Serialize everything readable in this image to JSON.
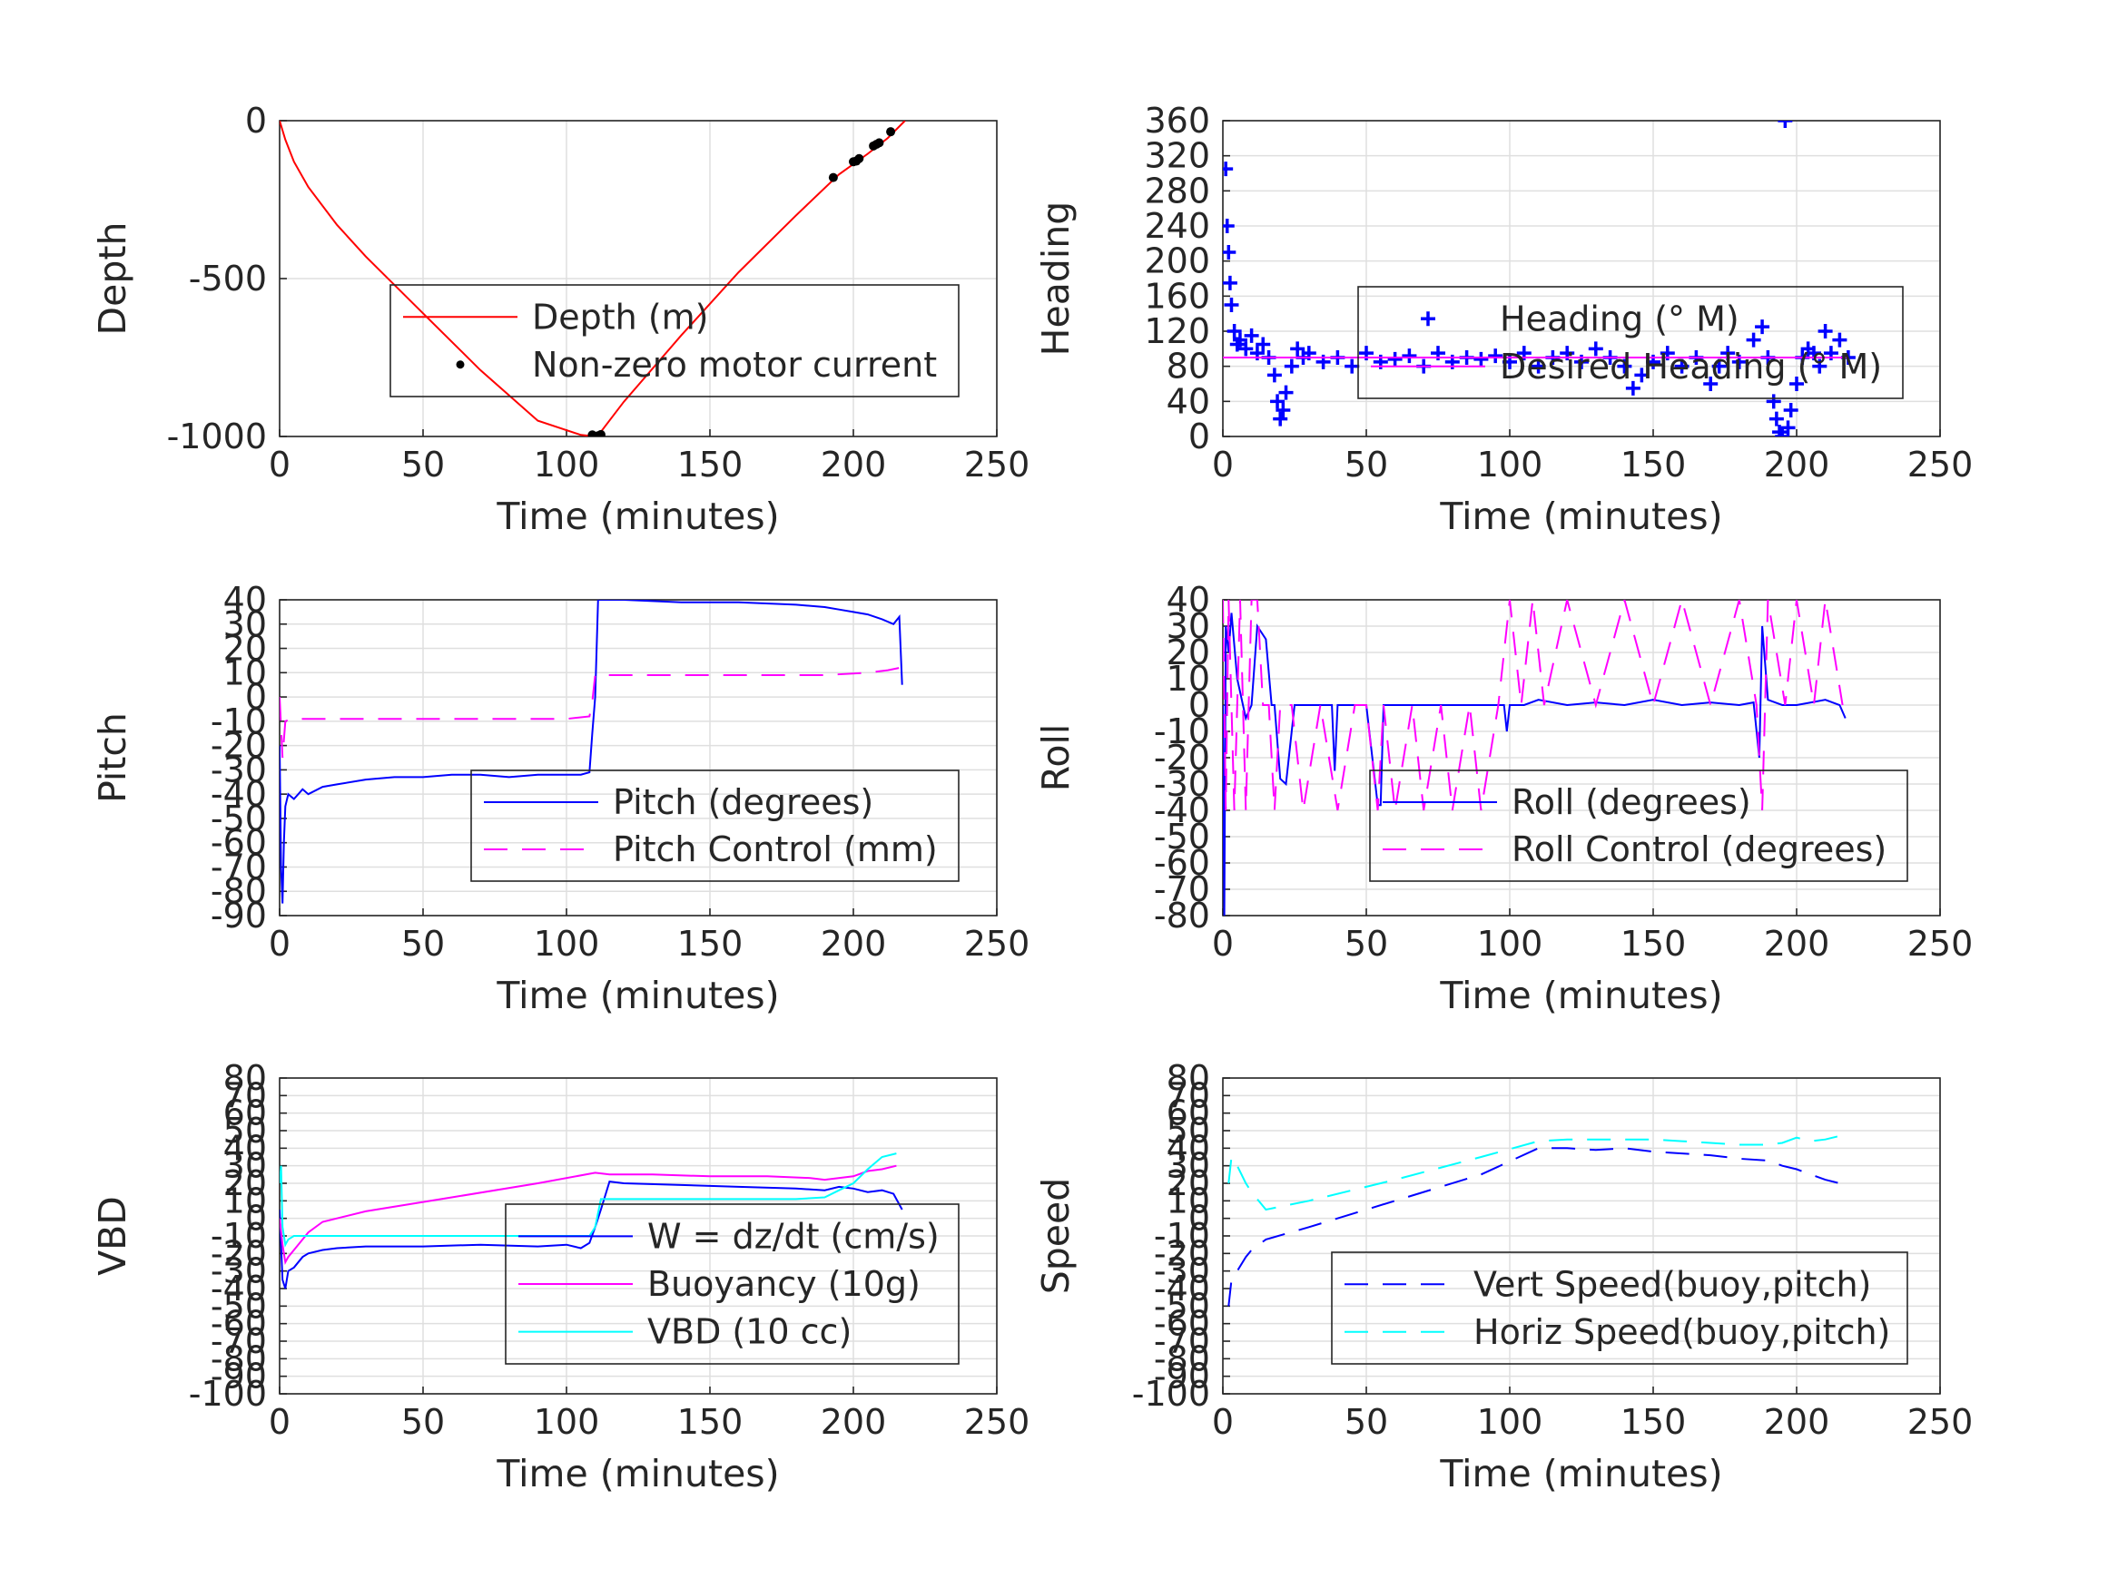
{
  "chart_data": [
    {
      "type": "line",
      "xlabel": "Time (minutes)",
      "ylabel": "Depth",
      "xlim": [
        0,
        250
      ],
      "ylim": [
        -1000,
        0
      ],
      "xticks": [
        0,
        50,
        100,
        150,
        200,
        250
      ],
      "yticks": [
        0,
        -500,
        -1000
      ],
      "grid": true,
      "legend_position": "center-right",
      "series": [
        {
          "name": "Depth (m)",
          "color": "#ff0000",
          "style": "solid",
          "x": [
            0,
            2,
            5,
            10,
            20,
            30,
            50,
            70,
            90,
            105,
            110,
            112,
            120,
            140,
            160,
            180,
            195,
            205,
            212,
            218
          ],
          "y": [
            0,
            -60,
            -130,
            -210,
            -330,
            -430,
            -610,
            -790,
            -950,
            -995,
            -1000,
            -985,
            -890,
            -680,
            -480,
            -300,
            -170,
            -105,
            -55,
            0
          ]
        },
        {
          "name": "Non-zero motor current",
          "color": "#000000",
          "style": "dot",
          "x": [
            109,
            110,
            111,
            112,
            193,
            200,
            201,
            202,
            207,
            208,
            209,
            213
          ],
          "y": [
            -995,
            -1000,
            -998,
            -994,
            -180,
            -130,
            -128,
            -120,
            -80,
            -75,
            -70,
            -35
          ]
        }
      ]
    },
    {
      "type": "scatter",
      "xlabel": "Time (minutes)",
      "ylabel": "Heading",
      "xlim": [
        0,
        250
      ],
      "ylim": [
        0,
        360
      ],
      "xticks": [
        0,
        50,
        100,
        150,
        200,
        250
      ],
      "yticks": [
        0,
        40,
        80,
        120,
        160,
        200,
        240,
        280,
        320,
        360
      ],
      "grid": true,
      "legend_position": "center-right",
      "series": [
        {
          "name": "Heading (° M)",
          "color": "#0000ff",
          "marker": "+",
          "x": [
            1,
            1.5,
            2,
            2.5,
            3,
            4,
            5,
            6,
            8,
            10,
            12,
            14,
            16,
            18,
            19,
            20,
            21,
            22,
            24,
            26,
            28,
            30,
            35,
            40,
            45,
            50,
            55,
            60,
            65,
            70,
            75,
            80,
            85,
            90,
            95,
            100,
            105,
            110,
            115,
            120,
            125,
            130,
            135,
            140,
            143,
            146,
            150,
            155,
            160,
            165,
            170,
            173,
            176,
            180,
            185,
            188,
            190,
            192,
            193,
            194,
            195,
            196,
            197,
            198,
            200,
            202,
            204,
            206,
            208,
            210,
            212,
            215,
            218
          ],
          "y": [
            305,
            240,
            210,
            175,
            150,
            120,
            105,
            110,
            100,
            115,
            95,
            105,
            90,
            70,
            40,
            20,
            30,
            50,
            80,
            100,
            90,
            95,
            85,
            90,
            80,
            95,
            85,
            88,
            92,
            80,
            95,
            85,
            90,
            88,
            92,
            85,
            95,
            80,
            90,
            95,
            85,
            100,
            90,
            80,
            55,
            70,
            85,
            95,
            80,
            90,
            60,
            80,
            95,
            85,
            110,
            125,
            90,
            40,
            20,
            5,
            0,
            360,
            10,
            30,
            60,
            90,
            100,
            95,
            80,
            120,
            95,
            110,
            90
          ]
        },
        {
          "name": "Desired Heading (° M)",
          "color": "#ff00ff",
          "style": "solid",
          "x": [
            0,
            218
          ],
          "y": [
            90,
            90
          ]
        }
      ]
    },
    {
      "type": "line",
      "xlabel": "Time (minutes)",
      "ylabel": "Pitch",
      "xlim": [
        0,
        250
      ],
      "ylim": [
        -90,
        40
      ],
      "xticks": [
        0,
        50,
        100,
        150,
        200,
        250
      ],
      "yticks": [
        40,
        30,
        20,
        10,
        0,
        -10,
        -20,
        -30,
        -40,
        -50,
        -60,
        -70,
        -80,
        -90
      ],
      "grid": true,
      "legend_position": "center-right",
      "series": [
        {
          "name": "Pitch (degrees)",
          "color": "#0000ff",
          "style": "solid",
          "x": [
            0,
            0.5,
            1,
            1.5,
            2,
            3,
            5,
            8,
            10,
            15,
            20,
            30,
            40,
            50,
            60,
            70,
            80,
            90,
            100,
            105,
            108,
            109,
            110,
            111,
            112,
            120,
            140,
            160,
            180,
            190,
            195,
            200,
            205,
            210,
            214,
            216,
            217
          ],
          "y": [
            -20,
            -70,
            -85,
            -60,
            -45,
            -40,
            -42,
            -38,
            -40,
            -37,
            -36,
            -34,
            -33,
            -33,
            -32,
            -32,
            -33,
            -32,
            -32,
            -32,
            -31,
            -15,
            0,
            40,
            40,
            40,
            39,
            39,
            38,
            37,
            36,
            35,
            34,
            32,
            30,
            33,
            5
          ]
        },
        {
          "name": "Pitch Control (mm)",
          "color": "#ff00ff",
          "style": "dashed",
          "x": [
            0,
            1,
            2,
            4,
            10,
            30,
            60,
            80,
            100,
            108,
            109,
            110,
            112,
            130,
            160,
            190,
            205,
            212,
            216
          ],
          "y": [
            0,
            -25,
            -10,
            -9,
            -9,
            -9,
            -9,
            -9,
            -9,
            -8,
            -2,
            9,
            9,
            9,
            9,
            9,
            10,
            11,
            12
          ]
        }
      ]
    },
    {
      "type": "line",
      "xlabel": "Time (minutes)",
      "ylabel": "Roll",
      "xlim": [
        0,
        250
      ],
      "ylim": [
        -80,
        40
      ],
      "xticks": [
        0,
        50,
        100,
        150,
        200,
        250
      ],
      "yticks": [
        40,
        30,
        20,
        10,
        0,
        -10,
        -20,
        -30,
        -40,
        -50,
        -60,
        -70,
        -80
      ],
      "grid": true,
      "legend_position": "center-right",
      "series": [
        {
          "name": "Roll (degrees)",
          "color": "#0000ff",
          "style": "solid",
          "x": [
            0,
            0.5,
            1,
            2,
            3,
            5,
            8,
            10,
            12,
            15,
            17,
            18,
            20,
            22,
            25,
            30,
            35,
            38,
            39,
            40,
            45,
            50,
            54,
            55,
            56,
            60,
            65,
            70,
            75,
            80,
            85,
            90,
            95,
            98,
            99,
            100,
            105,
            110,
            120,
            130,
            140,
            150,
            160,
            170,
            180,
            185,
            187,
            188,
            190,
            195,
            200,
            205,
            210,
            215,
            217
          ],
          "y": [
            0,
            -80,
            30,
            20,
            35,
            10,
            -5,
            0,
            30,
            25,
            0,
            0,
            -28,
            -30,
            0,
            0,
            0,
            0,
            -25,
            0,
            0,
            0,
            -38,
            -38,
            0,
            0,
            0,
            0,
            0,
            0,
            0,
            0,
            0,
            0,
            -10,
            0,
            0,
            2,
            0,
            1,
            0,
            2,
            0,
            1,
            0,
            1,
            -20,
            30,
            2,
            0,
            0,
            1,
            2,
            0,
            -5
          ]
        },
        {
          "name": "Roll Control (degrees)",
          "color": "#ff00ff",
          "style": "dashed",
          "x": [
            0,
            1,
            2,
            4,
            6,
            8,
            10,
            12,
            14,
            16,
            18,
            20,
            24,
            28,
            34,
            40,
            46,
            50,
            54,
            56,
            60,
            66,
            70,
            76,
            80,
            86,
            90,
            96,
            100,
            104,
            108,
            112,
            120,
            130,
            140,
            150,
            160,
            170,
            180,
            186,
            188,
            190,
            196,
            200,
            206,
            210,
            216
          ],
          "y": [
            40,
            -40,
            40,
            -40,
            40,
            -40,
            40,
            40,
            0,
            0,
            -40,
            0,
            0,
            -40,
            0,
            -40,
            0,
            0,
            -40,
            0,
            -40,
            0,
            -40,
            0,
            -40,
            0,
            -40,
            0,
            40,
            0,
            40,
            0,
            40,
            0,
            40,
            0,
            40,
            0,
            40,
            0,
            -40,
            40,
            0,
            40,
            0,
            40,
            0
          ]
        }
      ]
    },
    {
      "type": "line",
      "xlabel": "Time (minutes)",
      "ylabel": "VBD",
      "xlim": [
        0,
        250
      ],
      "ylim": [
        -100,
        80
      ],
      "xticks": [
        0,
        50,
        100,
        150,
        200,
        250
      ],
      "yticks": [
        80,
        70,
        60,
        50,
        40,
        30,
        20,
        10,
        0,
        -10,
        -20,
        -30,
        -40,
        -50,
        -60,
        -70,
        -80,
        -90,
        -100
      ],
      "grid": true,
      "legend_position": "center-right",
      "series": [
        {
          "name": "W = dz/dt (cm/s)",
          "color": "#0000ff",
          "style": "solid",
          "x": [
            0,
            1,
            2,
            3,
            5,
            8,
            10,
            15,
            20,
            30,
            50,
            70,
            90,
            100,
            105,
            108,
            110,
            112,
            115,
            120,
            140,
            160,
            180,
            190,
            195,
            200,
            205,
            210,
            214,
            217
          ],
          "y": [
            5,
            -35,
            -40,
            -30,
            -28,
            -22,
            -20,
            -18,
            -17,
            -16,
            -16,
            -15,
            -16,
            -15,
            -17,
            -14,
            -5,
            5,
            21,
            20,
            19,
            18,
            17,
            16,
            18,
            17,
            15,
            16,
            14,
            5
          ]
        },
        {
          "name": "Buoyancy (10g)",
          "color": "#ff00ff",
          "style": "solid",
          "x": [
            0,
            1,
            2,
            3,
            5,
            8,
            10,
            15,
            30,
            60,
            90,
            110,
            115,
            130,
            150,
            170,
            185,
            190,
            200,
            205,
            210,
            215
          ],
          "y": [
            0,
            -15,
            -25,
            -22,
            -18,
            -12,
            -8,
            -2,
            4,
            12,
            20,
            26,
            25,
            25,
            24,
            24,
            23,
            22,
            24,
            27,
            28,
            30
          ]
        },
        {
          "name": "VBD (10 cc)",
          "color": "#00ffff",
          "style": "solid",
          "x": [
            0,
            0.5,
            1,
            2,
            3,
            5,
            10,
            30,
            60,
            100,
            108,
            110,
            112,
            150,
            180,
            190,
            195,
            200,
            205,
            210,
            215
          ],
          "y": [
            20,
            30,
            -5,
            -15,
            -12,
            -10,
            -10,
            -10,
            -10,
            -10,
            -10,
            -5,
            11,
            11,
            11,
            12,
            16,
            20,
            28,
            35,
            37
          ]
        }
      ]
    },
    {
      "type": "line",
      "xlabel": "Time (minutes)",
      "ylabel": "Speed",
      "xlim": [
        0,
        250
      ],
      "ylim": [
        -100,
        80
      ],
      "xticks": [
        0,
        50,
        100,
        150,
        200,
        250
      ],
      "yticks": [
        80,
        70,
        60,
        50,
        40,
        30,
        20,
        10,
        0,
        -10,
        -20,
        -30,
        -40,
        -50,
        -60,
        -70,
        -80,
        -90,
        -100
      ],
      "grid": true,
      "legend_position": "center-right",
      "series": [
        {
          "name": "Vert Speed(buoy,pitch)",
          "color": "#0000ff",
          "style": "dashed",
          "x": [
            2,
            3,
            5,
            8,
            10,
            15,
            30,
            60,
            90,
            110,
            120,
            130,
            140,
            150,
            160,
            170,
            180,
            190,
            195,
            200,
            205,
            210,
            215
          ],
          "y": [
            -50,
            -35,
            -30,
            -22,
            -18,
            -12,
            -5,
            10,
            25,
            40,
            40,
            39,
            40,
            38,
            37,
            36,
            34,
            33,
            30,
            28,
            25,
            22,
            20
          ]
        },
        {
          "name": "Horiz Speed(buoy,pitch)",
          "color": "#00ffff",
          "style": "dashed",
          "x": [
            2,
            3,
            5,
            8,
            10,
            15,
            30,
            60,
            90,
            110,
            120,
            130,
            140,
            150,
            160,
            170,
            180,
            190,
            195,
            200,
            205,
            210,
            215
          ],
          "y": [
            20,
            35,
            30,
            20,
            15,
            5,
            10,
            22,
            35,
            44,
            45,
            45,
            45,
            45,
            44,
            43,
            42,
            42,
            43,
            46,
            44,
            45,
            47
          ]
        }
      ]
    }
  ]
}
